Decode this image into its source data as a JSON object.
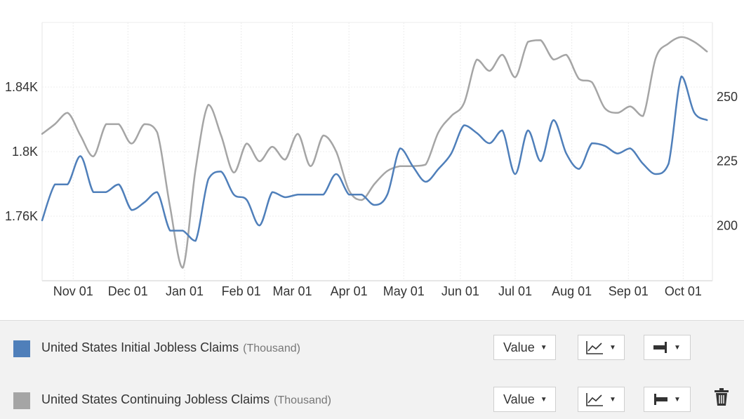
{
  "chart_data": {
    "type": "line",
    "x_ticks": [
      "Nov 01",
      "Dec 01",
      "Jan 01",
      "Feb 01",
      "Mar 01",
      "Apr 01",
      "May 01",
      "Jun 01",
      "Jul 01",
      "Aug 01",
      "Sep 01",
      "Oct 01"
    ],
    "left_axis": {
      "ticks": [
        "1.76K",
        "1.8K",
        "1.84K"
      ],
      "ylim": [
        1720,
        1880
      ]
    },
    "right_axis": {
      "ticks": [
        "200",
        "225",
        "250"
      ],
      "ylim": [
        178.5,
        279
      ]
    },
    "grid": true,
    "series": [
      {
        "name": "United States Initial Jobless Claims",
        "unit": "(Thousand)",
        "axis": "right",
        "color": "#4f7fba",
        "x": [
          "2016-10-15",
          "2016-10-22",
          "2016-10-29",
          "2016-11-05",
          "2016-11-12",
          "2016-11-19",
          "2016-11-26",
          "2016-12-03",
          "2016-12-10",
          "2016-12-17",
          "2016-12-24",
          "2016-12-31",
          "2017-01-07",
          "2017-01-14",
          "2017-01-21",
          "2017-01-28",
          "2017-02-04",
          "2017-02-11",
          "2017-02-18",
          "2017-02-25",
          "2017-03-04",
          "2017-03-11",
          "2017-03-18",
          "2017-03-25",
          "2017-04-01",
          "2017-04-08",
          "2017-04-15",
          "2017-04-22",
          "2017-04-29",
          "2017-05-06",
          "2017-05-13",
          "2017-05-20",
          "2017-05-27",
          "2017-06-03",
          "2017-06-10",
          "2017-06-17",
          "2017-06-24",
          "2017-07-01",
          "2017-07-08",
          "2017-07-15",
          "2017-07-22",
          "2017-07-29",
          "2017-08-05",
          "2017-08-12",
          "2017-08-19",
          "2017-08-26",
          "2017-09-02",
          "2017-09-09",
          "2017-09-16",
          "2017-09-23",
          "2017-09-30",
          "2017-10-07",
          "2017-10-14"
        ],
        "values": [
          202,
          216,
          216,
          227,
          213,
          213,
          216,
          206,
          209,
          213,
          198,
          198,
          194,
          218,
          221,
          212,
          210,
          200,
          213,
          211,
          212,
          212,
          212,
          220,
          212,
          212,
          208,
          212,
          230,
          223,
          217,
          222,
          228,
          239,
          236,
          232,
          237,
          220,
          237,
          225,
          241,
          228,
          222,
          232,
          231,
          228,
          230,
          224,
          220,
          224,
          258,
          244,
          241
        ]
      },
      {
        "name": "United States Continuing Jobless Claims",
        "unit": "(Thousand)",
        "axis": "left",
        "color": "#a5a5a5",
        "x": [
          "2016-10-15",
          "2016-10-22",
          "2016-10-29",
          "2016-11-05",
          "2016-11-12",
          "2016-11-19",
          "2016-11-26",
          "2016-12-03",
          "2016-12-10",
          "2016-12-17",
          "2016-12-24",
          "2016-12-31",
          "2017-01-07",
          "2017-01-14",
          "2017-01-21",
          "2017-01-28",
          "2017-02-04",
          "2017-02-11",
          "2017-02-18",
          "2017-02-25",
          "2017-03-04",
          "2017-03-11",
          "2017-03-18",
          "2017-03-25",
          "2017-04-01",
          "2017-04-08",
          "2017-04-15",
          "2017-04-22",
          "2017-04-29",
          "2017-05-06",
          "2017-05-13",
          "2017-05-20",
          "2017-05-27",
          "2017-06-03",
          "2017-06-10",
          "2017-06-17",
          "2017-06-24",
          "2017-07-01",
          "2017-07-08",
          "2017-07-15",
          "2017-07-22",
          "2017-07-29",
          "2017-08-05",
          "2017-08-12",
          "2017-08-19",
          "2017-08-26",
          "2017-09-02",
          "2017-09-09",
          "2017-09-16",
          "2017-09-23",
          "2017-09-30",
          "2017-10-07",
          "2017-10-14"
        ],
        "values": [
          1811,
          1817,
          1824,
          1810,
          1797,
          1817,
          1817,
          1805,
          1817,
          1812,
          1766,
          1728,
          1789,
          1829,
          1810,
          1787,
          1805,
          1794,
          1803,
          1795,
          1811,
          1791,
          1810,
          1800,
          1776,
          1770,
          1780,
          1788,
          1791,
          1791,
          1792,
          1812,
          1822,
          1830,
          1857,
          1850,
          1860,
          1846,
          1868,
          1869,
          1857,
          1860,
          1845,
          1843,
          1827,
          1824,
          1828,
          1822,
          1858,
          1867,
          1871,
          1868,
          1862
        ]
      }
    ]
  },
  "legend": {
    "rows": [
      {
        "label": "United States Initial Jobless Claims",
        "unit": "(Thousand)",
        "color": "#4f7fba",
        "mode": "Value",
        "chart_icon": "line-chart-icon",
        "axis_icon": "axis-right-icon"
      },
      {
        "label": "United States Continuing Jobless Claims",
        "unit": "(Thousand)",
        "color": "#a5a5a5",
        "mode": "Value",
        "chart_icon": "line-chart-icon",
        "axis_icon": "axis-left-icon"
      }
    ],
    "delete_icon": "trash-icon"
  }
}
